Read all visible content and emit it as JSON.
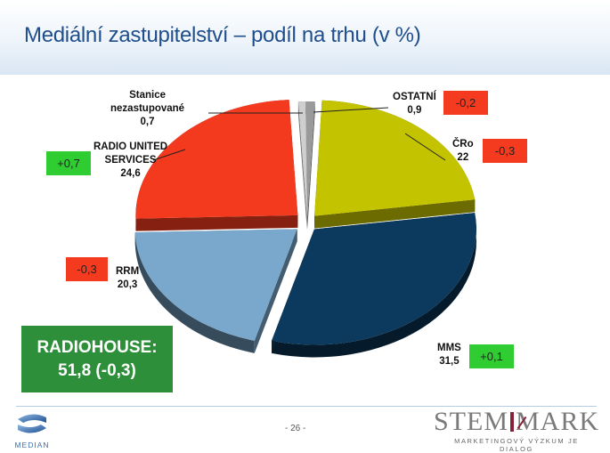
{
  "header": {
    "title": "Mediální zastupitelství – podíl na trhu (v %)"
  },
  "chart_data": {
    "type": "pie",
    "title": "Mediální zastupitelství – podíl na trhu (v %)",
    "style": "3d-exploded",
    "categories": [
      "OSTATNÍ",
      "ČRo",
      "MMS",
      "RRM",
      "RADIO UNITED SERVICES",
      "Stanice nezastupované"
    ],
    "values": [
      0.9,
      22,
      31.5,
      20.3,
      24.6,
      0.7
    ],
    "changes": [
      "-0,2",
      "-0,3",
      "+0,1",
      "-0,3",
      "+0,7",
      ""
    ],
    "colors": [
      "#9a9a9a",
      "#c3c300",
      "#0b3a5e",
      "#79a8cc",
      "#f33a1e",
      "#cfcfcf"
    ]
  },
  "labels": {
    "ostatni": {
      "name": "OSTATNÍ",
      "value": "0,9",
      "change": "-0,2"
    },
    "cro": {
      "name": "ČRo",
      "value": "22",
      "change": "-0,3"
    },
    "mms": {
      "name": "MMS",
      "value": "31,5",
      "change": "+0,1"
    },
    "rrm": {
      "name": "RRM",
      "value": "20,3",
      "change": "-0,3"
    },
    "rus": {
      "name1": "RADIO UNITED",
      "name2": "SERVICES",
      "value": "24,6",
      "change": "+0,7"
    },
    "nez": {
      "name1": "Stanice",
      "name2": "nezastupované",
      "value": "0,7"
    }
  },
  "total": {
    "label": "RADIOHOUSE:",
    "value": "51,8 (-0,3)"
  },
  "footer": {
    "page": "- 26 -",
    "left_logo": "MEDIAN",
    "right_logo_a": "STEM",
    "right_logo_b": "MARK",
    "right_tagline": "MARKETINGOVÝ VÝZKUM JE DIALOG"
  }
}
